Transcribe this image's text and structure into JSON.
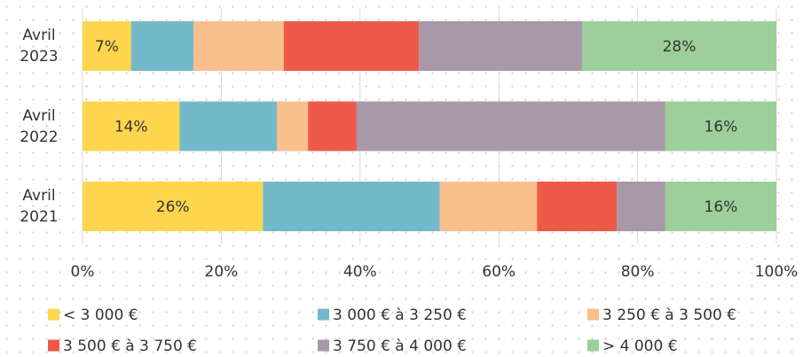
{
  "chart_data": {
    "type": "stacked-bar-horizontal",
    "categories": [
      "Avril 2023",
      "Avril 2022",
      "Avril 2021"
    ],
    "series": [
      {
        "name": "< 3 000 €",
        "color": "#fdd64e",
        "values": [
          7,
          14,
          26
        ],
        "value_labels": [
          "7%",
          "14%",
          "26%"
        ]
      },
      {
        "name": "3 000 € à 3 250 €",
        "color": "#74b9c9",
        "values": [
          9,
          14,
          25.5
        ],
        "value_labels": [
          null,
          null,
          null
        ]
      },
      {
        "name": "3 250 € à 3 500 €",
        "color": "#f9bf8c",
        "values": [
          13,
          4.5,
          14
        ],
        "value_labels": [
          null,
          null,
          null
        ]
      },
      {
        "name": "3 500 € à 3 750 €",
        "color": "#ee5948",
        "values": [
          19.5,
          7,
          11.5
        ],
        "value_labels": [
          null,
          null,
          null
        ]
      },
      {
        "name": "3 750 € à 4 000 €",
        "color": "#a898a8",
        "values": [
          23.5,
          44.5,
          7
        ],
        "value_labels": [
          null,
          null,
          null
        ]
      },
      {
        "name": "> 4 000 €",
        "color": "#9dcf9b",
        "values": [
          28,
          16,
          16
        ],
        "value_labels": [
          "28%",
          "16%",
          "16%"
        ]
      }
    ],
    "xlim": [
      0,
      100
    ],
    "xticks": [
      {
        "value": 0,
        "label": "0%"
      },
      {
        "value": 20,
        "label": "20%"
      },
      {
        "value": 40,
        "label": "40%"
      },
      {
        "value": 60,
        "label": "60%"
      },
      {
        "value": 80,
        "label": "80%"
      },
      {
        "value": 100,
        "label": "100%"
      }
    ],
    "grid": true,
    "legend": "bottom"
  }
}
